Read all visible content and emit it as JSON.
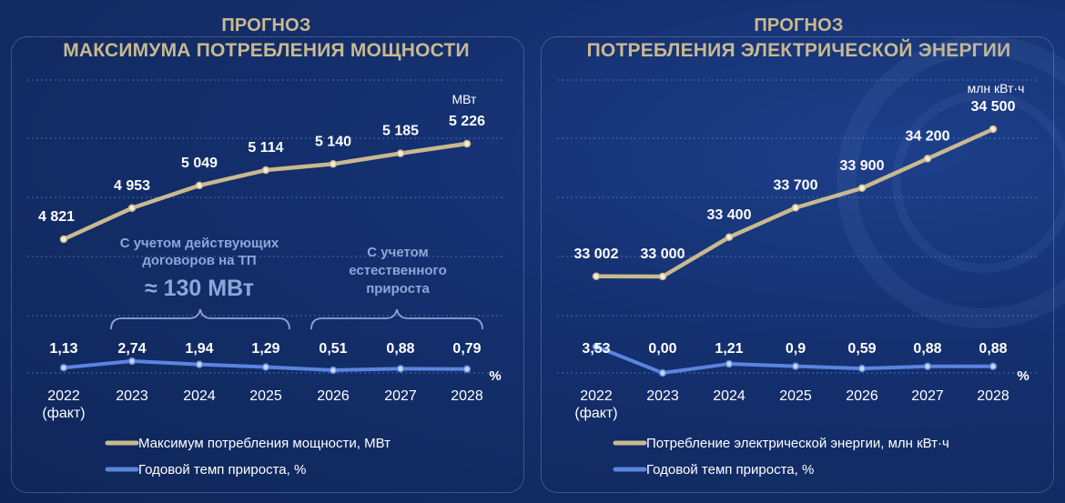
{
  "left": {
    "title_line1": "ПРОГНОЗ",
    "title_line2": "МАКСИМУМА ПОТРЕБЛЕНИЯ МОЩНОСТИ",
    "unit_primary": "МВт",
    "unit_secondary": "%",
    "annotation1_line1": "С учетом действующих",
    "annotation1_line2": "договоров на ТП",
    "annotation1_value": "≈ 130 МВт",
    "annotation2_line1": "С учетом",
    "annotation2_line2": "естественного",
    "annotation2_line3": "прироста",
    "legend_primary": "Максимум потребления мощности, МВт",
    "legend_secondary": "Годовой темп прироста, %"
  },
  "right": {
    "title_line1": "ПРОГНОЗ",
    "title_line2": "ПОТРЕБЛЕНИЯ ЭЛЕКТРИЧЕСКОЙ ЭНЕРГИИ",
    "unit_primary": "млн кВт·ч",
    "unit_secondary": "%",
    "legend_primary": "Потребление электрической энергии, млн кВт·ч",
    "legend_secondary": "Годовой темп прироста, %"
  },
  "colors": {
    "primary_line": "#c9b98f",
    "secondary_line": "#5a84e0",
    "title": "#c9b98f",
    "annotation": "#8ea6d9"
  },
  "chart_data": [
    {
      "type": "line",
      "title": "ПРОГНОЗ МАКСИМУМА ПОТРЕБЛЕНИЯ МОЩНОСТИ",
      "categories": [
        "2022",
        "2023",
        "2024",
        "2025",
        "2026",
        "2027",
        "2028"
      ],
      "category_sublabels": [
        "(факт)",
        "",
        "",
        "",
        "",
        "",
        ""
      ],
      "series": [
        {
          "name": "Максимум потребления мощности, МВт",
          "values": [
            4821,
            4953,
            5049,
            5114,
            5140,
            5185,
            5226
          ],
          "labels": [
            "4 821",
            "4 953",
            "5 049",
            "5 114",
            "5 140",
            "5 185",
            "5 226"
          ],
          "unit": "МВт"
        },
        {
          "name": "Годовой темп прироста, %",
          "values": [
            1.13,
            2.74,
            1.94,
            1.29,
            0.51,
            0.88,
            0.79
          ],
          "labels": [
            "1,13",
            "2,74",
            "1,94",
            "1,29",
            "0,51",
            "0,88",
            "0,79"
          ],
          "unit": "%"
        }
      ],
      "grid": true,
      "legend": "bottom"
    },
    {
      "type": "line",
      "title": "ПРОГНОЗ ПОТРЕБЛЕНИЯ ЭЛЕКТРИЧЕСКОЙ ЭНЕРГИИ",
      "categories": [
        "2022",
        "2023",
        "2024",
        "2025",
        "2026",
        "2027",
        "2028"
      ],
      "category_sublabels": [
        "(факт)",
        "",
        "",
        "",
        "",
        "",
        ""
      ],
      "series": [
        {
          "name": "Потребление электрической энергии, млн кВт·ч",
          "values": [
            33002,
            33000,
            33400,
            33700,
            33900,
            34200,
            34500
          ],
          "labels": [
            "33 002",
            "33 000",
            "33 400",
            "33 700",
            "33 900",
            "34 200",
            "34 500"
          ],
          "unit": "млн кВт·ч"
        },
        {
          "name": "Годовой темп прироста, %",
          "values": [
            3.53,
            0.0,
            1.21,
            0.9,
            0.59,
            0.88,
            0.88
          ],
          "labels": [
            "3,53",
            "0,00",
            "1,21",
            "0,9",
            "0,59",
            "0,88",
            "0,88"
          ],
          "unit": "%"
        }
      ],
      "grid": true,
      "legend": "bottom"
    }
  ]
}
